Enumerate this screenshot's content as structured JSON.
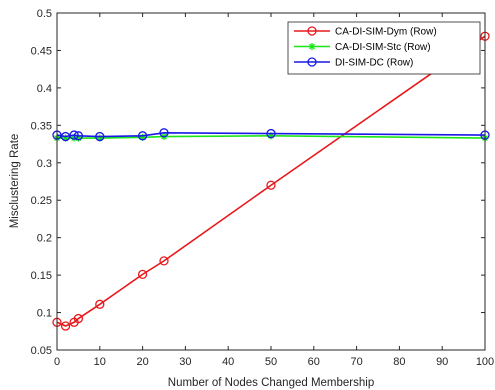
{
  "chart_data": {
    "type": "line",
    "xlabel": "Number of Nodes Changed Membership",
    "ylabel": "Misclustering Rate",
    "xlim": [
      0,
      100
    ],
    "ylim": [
      0.05,
      0.5
    ],
    "xticks": [
      0,
      10,
      20,
      30,
      40,
      50,
      60,
      70,
      80,
      90,
      100
    ],
    "yticks": [
      0.05,
      0.1,
      0.15,
      0.2,
      0.25,
      0.3,
      0.35,
      0.4,
      0.45,
      0.5
    ],
    "xtick_labels": [
      "0",
      "10",
      "20",
      "30",
      "40",
      "50",
      "60",
      "70",
      "80",
      "90",
      "100"
    ],
    "ytick_labels": [
      "0.05",
      "0.1",
      "0.15",
      "0.2",
      "0.25",
      "0.3",
      "0.35",
      "0.4",
      "0.45",
      "0.5"
    ],
    "grid": false,
    "legend_position": "top-right",
    "x": [
      0,
      2,
      4,
      5,
      10,
      20,
      25,
      50,
      100
    ],
    "series": [
      {
        "name": "CA-DI-SIM-Dym (Row)",
        "color": "#e8191c",
        "marker": "circle",
        "values": [
          0.087,
          0.082,
          0.087,
          0.092,
          0.111,
          0.151,
          0.169,
          0.27,
          0.469
        ]
      },
      {
        "name": "CA-DI-SIM-Stc (Row)",
        "color": "#19e619",
        "marker": "asterisk",
        "values": [
          0.333,
          0.333,
          0.333,
          0.333,
          0.333,
          0.334,
          0.335,
          0.336,
          0.333
        ]
      },
      {
        "name": "DI-SIM-DC (Row)",
        "color": "#1919e6",
        "marker": "circle",
        "values": [
          0.337,
          0.335,
          0.337,
          0.336,
          0.335,
          0.336,
          0.34,
          0.339,
          0.337
        ]
      }
    ]
  }
}
